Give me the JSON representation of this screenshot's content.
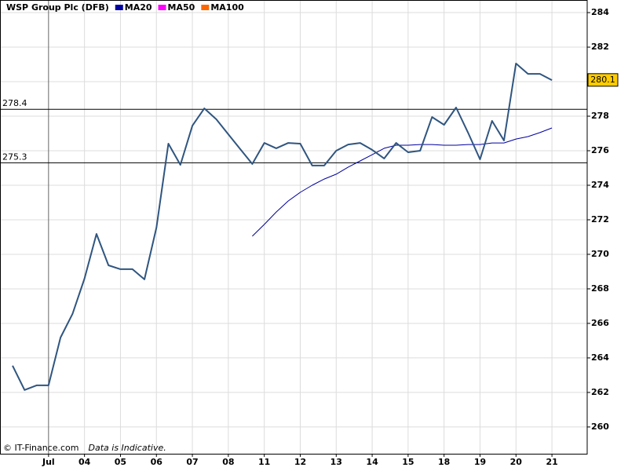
{
  "chart_data": {
    "type": "line",
    "title": "WSP Group Plc (DFB)",
    "x": [
      0,
      1,
      2,
      3,
      4,
      5,
      6,
      7,
      8,
      9,
      10,
      11,
      12,
      13,
      14,
      15,
      16,
      17,
      18,
      19,
      20,
      21,
      22,
      23,
      24,
      25,
      26,
      27,
      28,
      29,
      30,
      31,
      32,
      33,
      34,
      35,
      36,
      37,
      38,
      39,
      40,
      41,
      42,
      43,
      44,
      45
    ],
    "series": [
      {
        "name": "WSP Group Plc (DFB)",
        "color": "#2f5580",
        "values": [
          263.55,
          262.14,
          262.41,
          262.41,
          265.18,
          266.55,
          268.59,
          271.18,
          269.36,
          269.14,
          269.14,
          268.55,
          271.55,
          276.41,
          275.18,
          277.45,
          278.45,
          277.82,
          276.95,
          276.09,
          275.23,
          276.45,
          276.14,
          276.45,
          276.41,
          275.14,
          275.14,
          276.0,
          276.36,
          276.45,
          276.05,
          275.55,
          276.45,
          275.91,
          276.0,
          277.95,
          277.5,
          278.5,
          277.05,
          275.5,
          277.73,
          276.59,
          281.05,
          280.45,
          280.45,
          280.09
        ]
      },
      {
        "name": "MA20",
        "color": "#0000a0",
        "values": [
          null,
          null,
          null,
          null,
          null,
          null,
          null,
          null,
          null,
          null,
          null,
          null,
          null,
          null,
          null,
          null,
          null,
          null,
          null,
          null,
          271.05,
          271.73,
          272.45,
          273.09,
          273.59,
          274.0,
          274.36,
          274.64,
          275.05,
          275.41,
          275.77,
          276.14,
          276.32,
          276.32,
          276.36,
          276.36,
          276.32,
          276.32,
          276.36,
          276.36,
          276.45,
          276.45,
          276.68,
          276.82,
          277.05,
          277.32
        ]
      },
      {
        "name": "MA50",
        "color": "#ff00ff",
        "values": [
          null,
          null,
          null,
          null,
          null,
          null,
          null,
          null,
          null,
          null,
          null,
          null,
          null,
          null,
          null,
          null,
          null,
          null,
          null,
          null,
          null,
          null,
          null,
          null,
          null,
          null,
          null,
          null,
          null,
          null,
          null,
          null,
          null,
          null,
          null,
          null,
          null,
          null,
          null,
          null,
          null,
          null,
          null,
          null,
          null,
          null
        ]
      },
      {
        "name": "MA100",
        "color": "#ff6600",
        "values": [
          null,
          null,
          null,
          null,
          null,
          null,
          null,
          null,
          null,
          null,
          null,
          null,
          null,
          null,
          null,
          null,
          null,
          null,
          null,
          null,
          null,
          null,
          null,
          null,
          null,
          null,
          null,
          null,
          null,
          null,
          null,
          null,
          null,
          null,
          null,
          null,
          null,
          null,
          null,
          null,
          null,
          null,
          null,
          null,
          null,
          null
        ]
      }
    ],
    "xlim": [
      -1.05,
      47.94
    ],
    "ylim": [
      258.45,
      284.73
    ],
    "xticks": [
      {
        "value": 3,
        "label": "Jul"
      },
      {
        "value": 6,
        "label": "04"
      },
      {
        "value": 9,
        "label": "05"
      },
      {
        "value": 12,
        "label": "06"
      },
      {
        "value": 15,
        "label": "07"
      },
      {
        "value": 18,
        "label": "08"
      },
      {
        "value": 21,
        "label": "11"
      },
      {
        "value": 24,
        "label": "12"
      },
      {
        "value": 27,
        "label": "13"
      },
      {
        "value": 30,
        "label": "14"
      },
      {
        "value": 33,
        "label": "15"
      },
      {
        "value": 36,
        "label": "18"
      },
      {
        "value": 39,
        "label": "19"
      },
      {
        "value": 42,
        "label": "20"
      },
      {
        "value": 45,
        "label": "21"
      }
    ],
    "yticks": [
      260,
      262,
      264,
      266,
      268,
      270,
      272,
      274,
      276,
      278,
      280,
      282,
      284
    ],
    "grid": true,
    "hlines": [
      278.4,
      275.3
    ],
    "last_value": 280.1,
    "source": "© IT-Finance.com",
    "note": "Data is Indicative."
  }
}
